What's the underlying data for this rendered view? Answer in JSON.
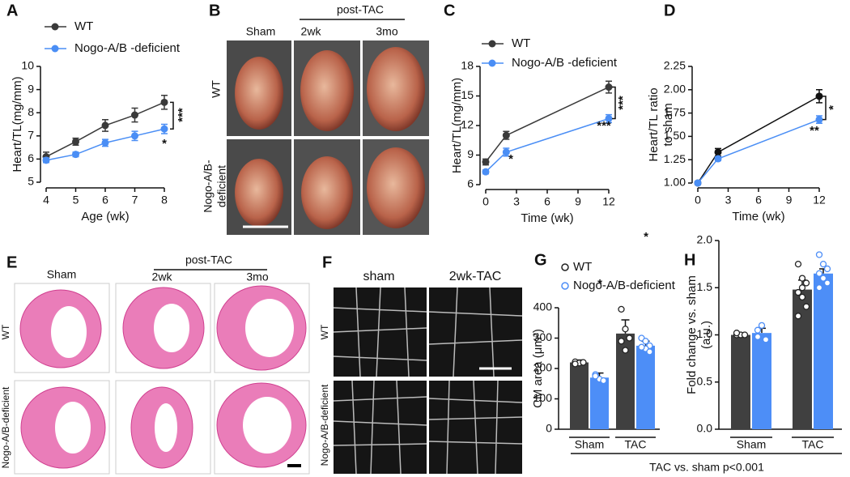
{
  "chart_data": [
    {
      "label": "A",
      "type": "line",
      "xlabel": "Age (wk)",
      "ylabel": [
        "Heart/TL(mg/mm)"
      ],
      "x": [
        4,
        5,
        6,
        7,
        8
      ],
      "xlim": [
        4,
        8
      ],
      "xticks": [
        4,
        5,
        6,
        7,
        8
      ],
      "ylim": [
        5,
        10
      ],
      "yticks": [
        5,
        6,
        7,
        8,
        9,
        10
      ],
      "series": [
        {
          "name": "WT",
          "color": "#3a3a3a",
          "values": [
            6.1,
            6.75,
            7.45,
            7.9,
            8.45
          ],
          "errors": [
            0.2,
            0.15,
            0.25,
            0.3,
            0.3
          ]
        },
        {
          "name": "Nogo-A/B -deficient",
          "color": "#4a8ef5",
          "values": [
            5.95,
            6.2,
            6.7,
            7.0,
            7.3
          ],
          "errors": [
            0.1,
            0.1,
            0.15,
            0.2,
            0.2
          ]
        }
      ],
      "annotations": [
        "***",
        "*"
      ]
    },
    {
      "label": "C",
      "type": "line",
      "xlabel": "Time (wk)",
      "ylabel": [
        "Heart/TL(mg/mm)"
      ],
      "x": [
        0,
        2,
        12
      ],
      "xlim": [
        0,
        12
      ],
      "xticks": [
        0,
        3,
        6,
        9,
        12
      ],
      "ylim": [
        6,
        18
      ],
      "yticks": [
        6,
        9,
        12,
        15,
        18
      ],
      "series": [
        {
          "name": "WT",
          "color": "#3a3a3a",
          "values": [
            8.3,
            11.0,
            15.9
          ],
          "errors": [
            0.3,
            0.4,
            0.6
          ]
        },
        {
          "name": "Nogo-A/B -deficient",
          "color": "#4a8ef5",
          "values": [
            7.3,
            9.3,
            12.7
          ],
          "errors": [
            0.2,
            0.4,
            0.4
          ]
        }
      ],
      "annotations": [
        "***",
        "*",
        "***"
      ]
    },
    {
      "label": "D",
      "type": "line",
      "xlabel": "Time (wk)",
      "ylabel": [
        "Heart/TL ratio",
        "to sham"
      ],
      "x": [
        0,
        2,
        12
      ],
      "xlim": [
        0,
        12
      ],
      "xticks": [
        0,
        3,
        6,
        9,
        12
      ],
      "ylim": [
        1,
        2.25
      ],
      "yticks": [
        {
          "value": 1,
          "label": "1.00"
        },
        1.25,
        {
          "value": 1.5,
          "label": "1.50"
        },
        1.75,
        {
          "value": 2,
          "label": "2.00"
        },
        2.25
      ],
      "series": [
        {
          "color": "#111111",
          "values": [
            1.0,
            1.33,
            1.93
          ],
          "errors": [
            0.02,
            0.04,
            0.07
          ]
        },
        {
          "color": "#4a8ef5",
          "values": [
            1.0,
            1.26,
            1.68
          ],
          "errors": [
            0.02,
            0.02,
            0.04
          ]
        }
      ],
      "annotations": [
        "*",
        "**"
      ]
    },
    {
      "label": "G",
      "type": "bar",
      "ylabel": [
        "CM area (μm²)"
      ],
      "categories": [
        "Sham",
        "TAC"
      ],
      "ylim": [
        0,
        400
      ],
      "yticks": [
        0,
        100,
        200,
        300,
        400
      ],
      "series": [
        {
          "name": "WT",
          "color": "#404040",
          "values": [
            220,
            315
          ],
          "errors": [
            8,
            45
          ],
          "points": [
            [
              222,
              218,
              220,
              215
            ],
            [
              395,
              330,
              300,
              290,
              260
            ]
          ]
        },
        {
          "name": "Nogo-A/B-deficient",
          "color": "#4d8ef7",
          "values": [
            170,
            275
          ],
          "errors": [
            15,
            15
          ],
          "points": [
            [
              180,
              165,
              160,
              175
            ],
            [
              300,
              290,
              275,
              270,
              265,
              255,
              270
            ]
          ]
        }
      ],
      "annotations": [
        "*",
        "*"
      ]
    },
    {
      "label": "H",
      "type": "bar",
      "ylabel": [
        "Fold change vs. sham",
        "(a.u.)"
      ],
      "categories": [
        "Sham",
        "TAC"
      ],
      "ylim": [
        0,
        2
      ],
      "yticks": [
        {
          "value": 0,
          "label": "0.0"
        },
        0.5,
        {
          "value": 1,
          "label": "1.0"
        },
        1.5,
        {
          "value": 2,
          "label": "2.0"
        }
      ],
      "series": [
        {
          "color": "#404040",
          "values": [
            1.0,
            1.48
          ],
          "errors": [
            0.02,
            0.1
          ],
          "points": [
            [
              1.0,
              1.0,
              1.0,
              1.02
            ],
            [
              1.75,
              1.6,
              1.55,
              1.45,
              1.4,
              1.3,
              1.2,
              1.5
            ]
          ]
        },
        {
          "color": "#4d8ef7",
          "values": [
            1.02,
            1.65
          ],
          "errors": [
            0.05,
            0.05
          ],
          "points": [
            [
              1.05,
              1.1,
              0.95,
              0.98
            ],
            [
              1.85,
              1.75,
              1.7,
              1.65,
              1.6,
              1.55,
              1.5,
              1.6
            ]
          ]
        }
      ]
    }
  ],
  "figure": {
    "footer": "TAC vs. sham p<0.001",
    "B": {
      "label": "B",
      "group": "post-TAC",
      "columns": [
        "Sham",
        "2wk",
        "3mo"
      ],
      "rows": [
        [
          "WT"
        ],
        [
          "Nogo-A/B-",
          "deficient"
        ]
      ]
    },
    "E": {
      "label": "E",
      "group": "post-TAC",
      "columns": [
        "Sham",
        "2wk",
        "3mo"
      ],
      "rows": [
        "WT",
        "Nogo-A/B-deficient"
      ]
    },
    "F": {
      "label": "F",
      "columns": [
        "sham",
        "2wk-TAC"
      ],
      "rows": [
        "WT",
        "Nogo-A/B-deficient"
      ]
    }
  }
}
